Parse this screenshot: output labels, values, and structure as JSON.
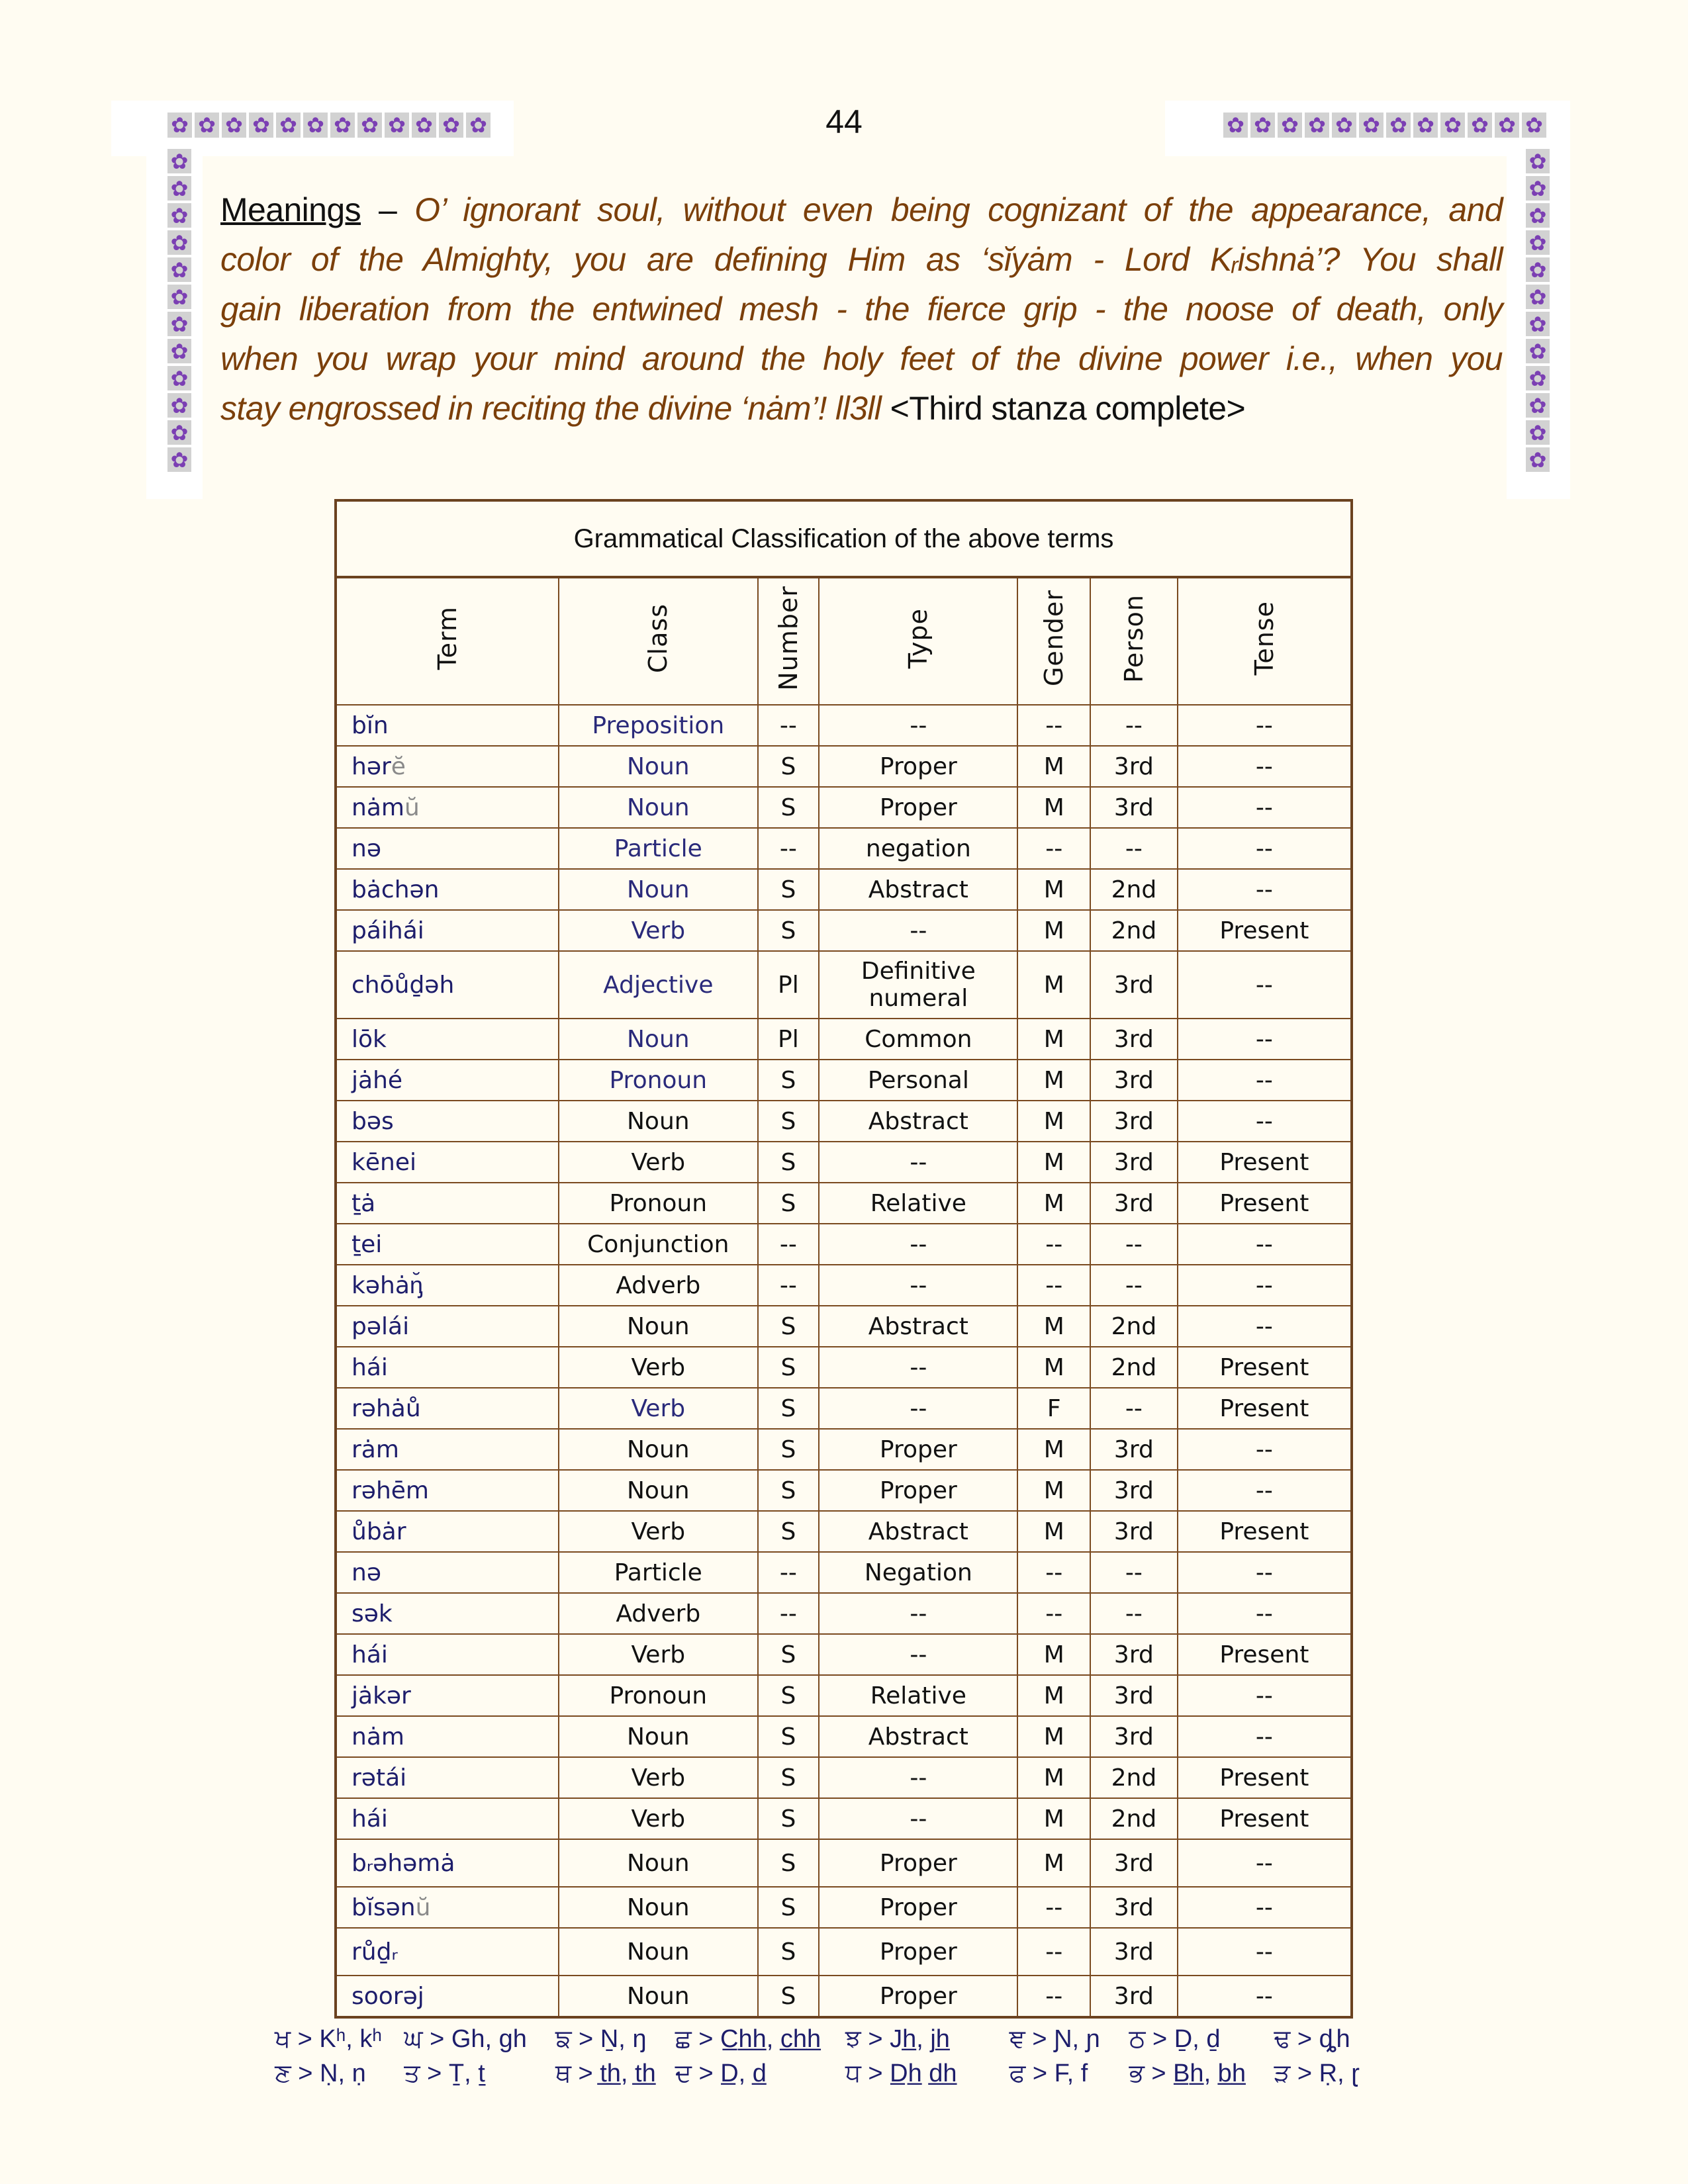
{
  "page_number": "44",
  "ornament": {
    "glyph": "✿",
    "color": "#7b3fb3",
    "background": "#d2d2d2"
  },
  "meanings": {
    "label": "Meanings",
    "dash": " – ",
    "lines": [
      "O’ ignorant  soul, without even being cognizant of the appearance, and",
      "color of the Almighty, you are defining Him as  ‘sĭyȧm - Lord Kᵣishnȧ’? You shall",
      "gain liberation from the entwined mesh - the fierce grip - the noose of death, only",
      "when you wrap your mind around the holy feet of the divine power i.e., when you",
      "stay engrossed in reciting the divine ‘nȧm’! ll3ll"
    ],
    "tail": " <Third stanza complete>",
    "text_color": "#7b3f0a"
  },
  "table": {
    "title": "Grammatical Classification of the above terms",
    "headers": [
      "Term",
      "Class",
      "Number",
      "Type",
      "Gender",
      "Person",
      "Tense"
    ],
    "rows": [
      {
        "term": "bĭn",
        "suffix": "",
        "class": "Preposition",
        "number": "--",
        "type": "--",
        "gender": "--",
        "person": "--",
        "tense": "--"
      },
      {
        "term": "hər",
        "suffix": "ĕ",
        "class": "Noun",
        "number": "S",
        "type": "Proper",
        "gender": "M",
        "person": "3rd",
        "tense": "--"
      },
      {
        "term": "nȧm",
        "suffix": "ŭ",
        "class": "Noun",
        "number": "S",
        "type": "Proper",
        "gender": "M",
        "person": "3rd",
        "tense": "--"
      },
      {
        "term": "nə",
        "suffix": "",
        "class": "Particle",
        "number": "--",
        "type": "negation",
        "gender": "--",
        "person": "--",
        "tense": "--"
      },
      {
        "term": "bȧchən",
        "suffix": "",
        "class": "Noun",
        "number": "S",
        "type": "Abstract",
        "gender": "M",
        "person": "2nd",
        "tense": "--"
      },
      {
        "term": "páihái",
        "suffix": "",
        "class": "Verb",
        "number": "S",
        "type": "--",
        "gender": "M",
        "person": "2nd",
        "tense": "Present"
      },
      {
        "term": "chōůḏəh",
        "suffix": "",
        "class": "Adjective",
        "number": "Pl",
        "type": "Definitive numeral",
        "gender": "M",
        "person": "3rd",
        "tense": "--"
      },
      {
        "term": "lōk",
        "suffix": "",
        "class": "Noun",
        "number": "Pl",
        "type": "Common",
        "gender": "M",
        "person": "3rd",
        "tense": "--"
      },
      {
        "term": "jȧhé",
        "suffix": "",
        "class": "Pronoun",
        "number": "S",
        "type": "Personal",
        "gender": "M",
        "person": "3rd",
        "tense": "--"
      },
      {
        "term": "bəs",
        "suffix": "",
        "class": "Noun",
        "number": "S",
        "type": "Abstract",
        "gender": "M",
        "person": "3rd",
        "tense": "--"
      },
      {
        "term": "kēnei",
        "suffix": "",
        "class": "Verb",
        "number": "S",
        "type": "--",
        "gender": "M",
        "person": "3rd",
        "tense": "Present"
      },
      {
        "term": "ṯȧ",
        "suffix": "",
        "class": "Pronoun",
        "number": "S",
        "type": "Relative",
        "gender": "M",
        "person": "3rd",
        "tense": "Present"
      },
      {
        "term": "ṯei",
        "suffix": "",
        "class": "Conjunction",
        "number": "--",
        "type": "--",
        "gender": "--",
        "person": "--",
        "tense": "--"
      },
      {
        "term": "kəhȧᶇ̆",
        "suffix": "",
        "class": "Adverb",
        "number": "--",
        "type": "--",
        "gender": "--",
        "person": "--",
        "tense": "--"
      },
      {
        "term": "pəlái",
        "suffix": "",
        "class": "Noun",
        "number": "S",
        "type": "Abstract",
        "gender": "M",
        "person": "2nd",
        "tense": "--"
      },
      {
        "term": "hái",
        "suffix": "",
        "class": "Verb",
        "number": "S",
        "type": "--",
        "gender": "M",
        "person": "2nd",
        "tense": "Present"
      },
      {
        "term": "rəhȧů",
        "suffix": "",
        "class": "Verb",
        "number": "S",
        "type": "--",
        "gender": "F",
        "person": "--",
        "tense": "Present"
      },
      {
        "term": "rȧm",
        "suffix": "",
        "class": "Noun",
        "number": "S",
        "type": "Proper",
        "gender": "M",
        "person": "3rd",
        "tense": "--"
      },
      {
        "term": "rəhēm",
        "suffix": "",
        "class": "Noun",
        "number": "S",
        "type": "Proper",
        "gender": "M",
        "person": "3rd",
        "tense": "--"
      },
      {
        "term": "ůbȧr",
        "suffix": "",
        "class": "Verb",
        "number": "S",
        "type": "Abstract",
        "gender": "M",
        "person": "3rd",
        "tense": "Present"
      },
      {
        "term": "nə",
        "suffix": "",
        "class": "Particle",
        "number": "--",
        "type": "Negation",
        "gender": "--",
        "person": "--",
        "tense": "--"
      },
      {
        "term": "sək",
        "suffix": "",
        "class": "Adverb",
        "number": "--",
        "type": "--",
        "gender": "--",
        "person": "--",
        "tense": "--"
      },
      {
        "term": "hái",
        "suffix": "",
        "class": "Verb",
        "number": "S",
        "type": "--",
        "gender": "M",
        "person": "3rd",
        "tense": "Present"
      },
      {
        "term": "jȧkər",
        "suffix": "",
        "class": "Pronoun",
        "number": "S",
        "type": "Relative",
        "gender": "M",
        "person": "3rd",
        "tense": "--"
      },
      {
        "term": "nȧm",
        "suffix": "",
        "class": "Noun",
        "number": "S",
        "type": "Abstract",
        "gender": "M",
        "person": "3rd",
        "tense": "--"
      },
      {
        "term": "rətái",
        "suffix": "",
        "class": "Verb",
        "number": "S",
        "type": "--",
        "gender": "M",
        "person": "2nd",
        "tense": "Present"
      },
      {
        "term": "hái",
        "suffix": "",
        "class": "Verb",
        "number": "S",
        "type": "--",
        "gender": "M",
        "person": "2nd",
        "tense": "Present"
      },
      {
        "term": "bᵣəhəmȧ",
        "suffix": "",
        "class": "Noun",
        "number": "S",
        "type": "Proper",
        "gender": "M",
        "person": "3rd",
        "tense": "--"
      },
      {
        "term": "bĭsən",
        "suffix": "ŭ",
        "class": "Noun",
        "number": "S",
        "type": "Proper",
        "gender": "--",
        "person": "3rd",
        "tense": "--"
      },
      {
        "term": "růḏᵣ",
        "suffix": "",
        "class": "Noun",
        "number": "S",
        "type": "Proper",
        "gender": "--",
        "person": "3rd",
        "tense": "--"
      },
      {
        "term": "soorəj",
        "suffix": "",
        "class": "Noun",
        "number": "S",
        "type": "Proper",
        "gender": "--",
        "person": "3rd",
        "tense": "--"
      }
    ],
    "border_color": "#7a4a20",
    "term_color": "#1d1d6b"
  },
  "footer": {
    "rows": [
      [
        "ਖ > Kʰ, kʰ",
        "ਘ > Gh, gh",
        "ਙ > Ṉ, ŋ",
        "ਛ > C̲h̲h̲, c̲h̲h̲",
        "ਝ > Jh̲, jh̲",
        "ਞ > Ɲ, ɲ",
        "ਠ > Ḏ, ḏ",
        "ਢ > ȡh"
      ],
      [
        "ਣ > Ṇ, ṇ",
        "ਤ > Ṯ, ṯ",
        "ਥ > t̲h̲, t̲h̲",
        "ਦ > D̲, d̲",
        "ਧ > D̲h̲  d̲h̲",
        "ਫ > F, f",
        "ਭ > B̲h̲, b̲h̲",
        "ੜ > Ṛ, ɽ"
      ]
    ]
  }
}
